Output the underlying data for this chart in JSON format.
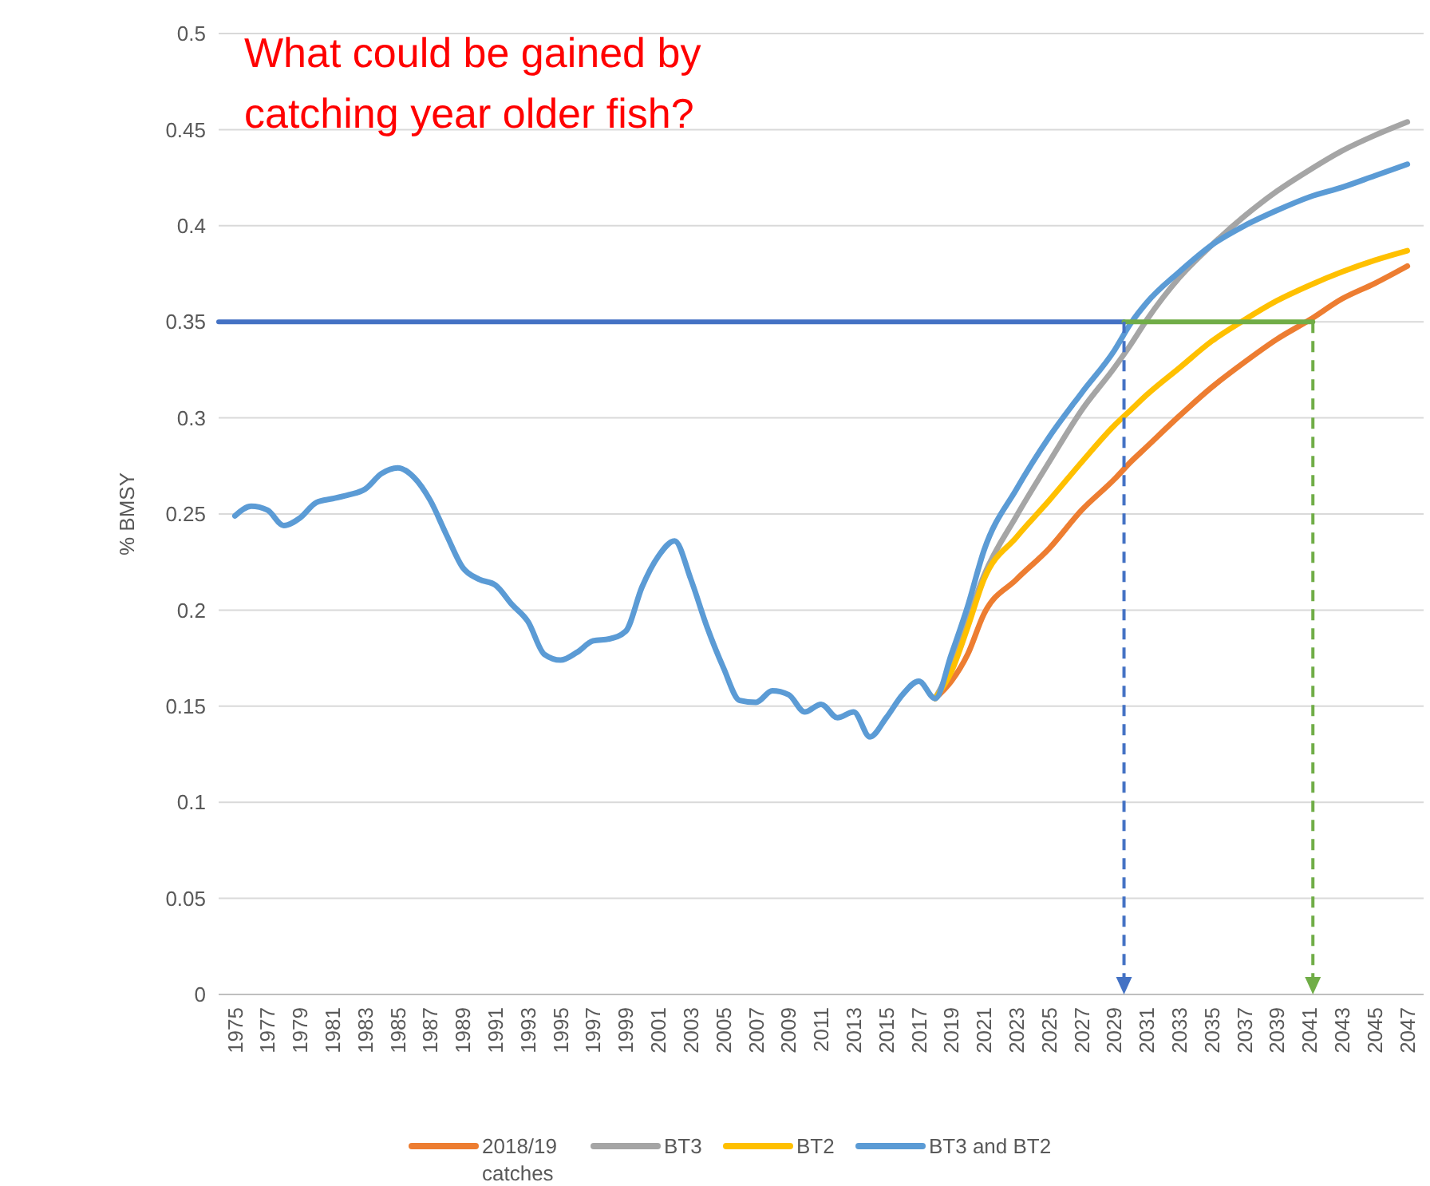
{
  "chart_data": {
    "type": "line",
    "title": "What could be gained by catching year older fish?",
    "ylabel": "% BMSY",
    "xlim": [
      1974,
      2048
    ],
    "xticks": [
      1975,
      1977,
      1979,
      1981,
      1983,
      1985,
      1987,
      1989,
      1991,
      1993,
      1995,
      1997,
      1999,
      2001,
      2003,
      2005,
      2007,
      2009,
      2011,
      2013,
      2015,
      2017,
      2019,
      2021,
      2023,
      2025,
      2027,
      2029,
      2031,
      2033,
      2035,
      2037,
      2039,
      2041,
      2043,
      2045,
      2047
    ],
    "ylim": [
      0,
      0.5
    ],
    "yticks": [
      0,
      0.05,
      0.1,
      0.15,
      0.2,
      0.25,
      0.3,
      0.35,
      0.4,
      0.45,
      0.5
    ],
    "grid": "y",
    "legend": "bottom",
    "line_style": "solid",
    "marker": "none",
    "series": [
      {
        "name": "2018/19 catches",
        "color": "#ed7d31",
        "x": [
          2018,
          2019,
          2020,
          2021,
          2023,
          2025,
          2027,
          2029,
          2030,
          2031,
          2033,
          2035,
          2037,
          2039,
          2041,
          2043,
          2045,
          2047
        ],
        "values": [
          0.154,
          0.163,
          0.177,
          0.198,
          0.216,
          0.232,
          0.252,
          0.268,
          0.277,
          0.285,
          0.301,
          0.316,
          0.329,
          0.341,
          0.351,
          0.362,
          0.37,
          0.379
        ]
      },
      {
        "name": "BT3",
        "color": "#a5a5a5",
        "x": [
          2018,
          2019,
          2020,
          2021,
          2023,
          2025,
          2027,
          2029,
          2030,
          2031,
          2033,
          2035,
          2037,
          2039,
          2041,
          2043,
          2045,
          2047
        ],
        "values": [
          0.154,
          0.171,
          0.195,
          0.218,
          0.249,
          0.277,
          0.304,
          0.326,
          0.338,
          0.351,
          0.373,
          0.39,
          0.405,
          0.418,
          0.429,
          0.439,
          0.447,
          0.454
        ]
      },
      {
        "name": "BT2",
        "color": "#ffc000",
        "x": [
          2018,
          2019,
          2020,
          2021,
          2023,
          2025,
          2027,
          2029,
          2030,
          2031,
          2033,
          2035,
          2037,
          2039,
          2041,
          2043,
          2045,
          2047
        ],
        "values": [
          0.154,
          0.168,
          0.191,
          0.216,
          0.238,
          0.257,
          0.277,
          0.296,
          0.304,
          0.312,
          0.326,
          0.34,
          0.351,
          0.361,
          0.369,
          0.376,
          0.382,
          0.387
        ]
      },
      {
        "name": "BT3 and BT2",
        "color": "#5b9bd5",
        "x": [
          1975,
          1976,
          1977,
          1978,
          1979,
          1980,
          1981,
          1982,
          1983,
          1984,
          1985,
          1986,
          1987,
          1988,
          1989,
          1990,
          1991,
          1992,
          1993,
          1994,
          1995,
          1996,
          1997,
          1998,
          1999,
          2000,
          2001,
          2002,
          2003,
          2004,
          2005,
          2006,
          2007,
          2008,
          2009,
          2010,
          2011,
          2012,
          2013,
          2014,
          2015,
          2016,
          2017,
          2018,
          2019,
          2020,
          2021,
          2023,
          2025,
          2027,
          2029,
          2030,
          2031,
          2033,
          2035,
          2037,
          2039,
          2041,
          2043,
          2045,
          2047
        ],
        "values": [
          0.249,
          0.254,
          0.252,
          0.244,
          0.248,
          0.256,
          0.258,
          0.26,
          0.263,
          0.271,
          0.274,
          0.269,
          0.257,
          0.239,
          0.222,
          0.216,
          0.213,
          0.203,
          0.194,
          0.177,
          0.174,
          0.178,
          0.184,
          0.185,
          0.189,
          0.212,
          0.228,
          0.236,
          0.216,
          0.191,
          0.17,
          0.153,
          0.152,
          0.158,
          0.156,
          0.147,
          0.151,
          0.144,
          0.147,
          0.134,
          0.144,
          0.156,
          0.163,
          0.154,
          0.177,
          0.202,
          0.231,
          0.263,
          0.29,
          0.313,
          0.335,
          0.349,
          0.36,
          0.376,
          0.39,
          0.4,
          0.408,
          0.415,
          0.42,
          0.426,
          0.432
        ]
      },
      {
        "color": "#4472c4",
        "x": [
          1974,
          2029.6
        ],
        "values": [
          0.35,
          0.35
        ]
      },
      {
        "color": "#70ad47",
        "x": [
          2029.6,
          2041.2
        ],
        "values": [
          0.35,
          0.35
        ]
      }
    ]
  }
}
